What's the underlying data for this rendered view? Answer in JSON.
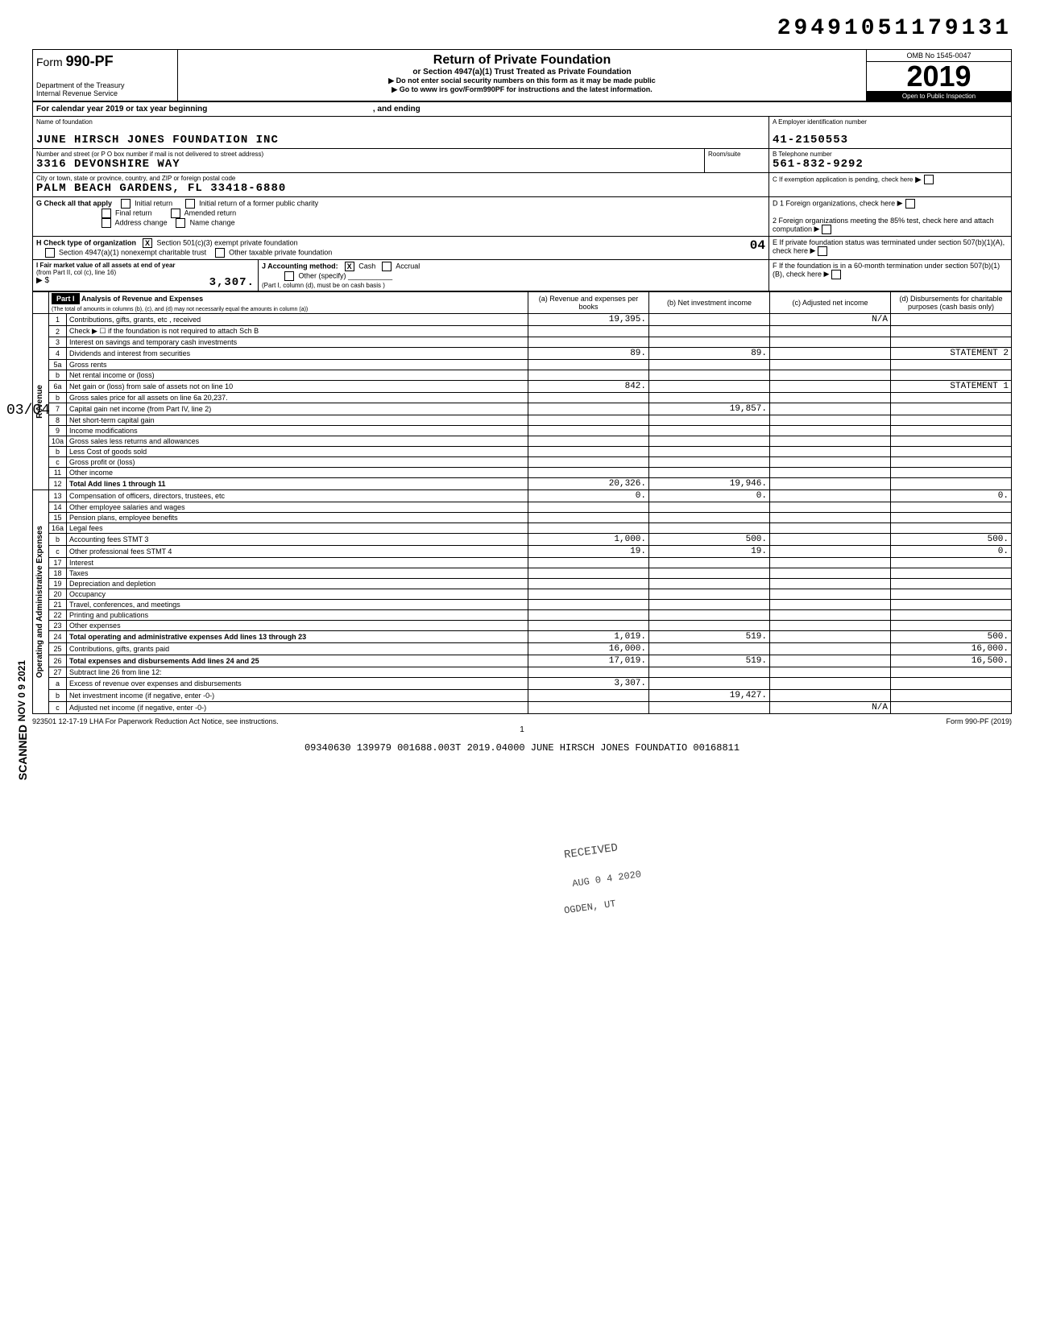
{
  "top_number": "29491051179131",
  "header": {
    "form_label": "Form",
    "form_no": "990-PF",
    "dept": "Department of the Treasury",
    "irs": "Internal Revenue Service",
    "title": "Return of Private Foundation",
    "subtitle": "or Section 4947(a)(1) Trust Treated as Private Foundation",
    "note1": "▶ Do not enter social security numbers on this form as it may be made public",
    "note2": "▶ Go to www irs gov/Form990PF for instructions and the latest information.",
    "omb": "OMB No 1545-0047",
    "year": "2019",
    "open": "Open to Public Inspection"
  },
  "calendar": {
    "text": "For calendar year 2019 or tax year beginning",
    "ending": ", and ending"
  },
  "foundation": {
    "name_label": "Name of foundation",
    "name": "JUNE HIRSCH JONES FOUNDATION INC",
    "addr_label": "Number and street (or P O box number if mail is not delivered to street address)",
    "addr": "3316 DEVONSHIRE WAY",
    "room_label": "Room/suite",
    "city_label": "City or town, state or province, country, and ZIP or foreign postal code",
    "city": "PALM BEACH GARDENS, FL   33418-6880",
    "ein_label": "A Employer identification number",
    "ein": "41-2150553",
    "phone_label": "B Telephone number",
    "phone": "561-832-9292",
    "c_label": "C If exemption application is pending, check here",
    "d1_label": "D 1 Foreign organizations, check here",
    "d2_label": "2 Foreign organizations meeting the 85% test, check here and attach computation",
    "e_label": "E If private foundation status was terminated under section 507(b)(1)(A), check here",
    "f_label": "F If the foundation is in a 60-month termination under section 507(b)(1)(B), check here"
  },
  "g": {
    "label": "G  Check all that apply",
    "initial": "Initial return",
    "initial_former": "Initial return of a former public charity",
    "final": "Final return",
    "amended": "Amended return",
    "addr_change": "Address change",
    "name_change": "Name change"
  },
  "h": {
    "label": "H  Check type of organization",
    "opt1": "Section 501(c)(3) exempt private foundation",
    "opt2": "Section 4947(a)(1) nonexempt charitable trust",
    "opt3": "Other taxable private foundation",
    "hand": "04"
  },
  "i": {
    "label": "I  Fair market value of all assets at end of year",
    "sub": "(from Part II, col (c), line 16)",
    "arrow": "▶ $",
    "value": "3,307."
  },
  "j": {
    "label": "J  Accounting method:",
    "cash": "Cash",
    "accrual": "Accrual",
    "other": "Other (specify)",
    "note": "(Part I, column (d), must be on cash basis )"
  },
  "part1": {
    "label": "Part I",
    "title": "Analysis of Revenue and Expenses",
    "subtitle": "(The total of amounts in columns (b), (c), and (d) may not necessarily equal the amounts in column (a))",
    "col_a": "(a) Revenue and expenses per books",
    "col_b": "(b) Net investment income",
    "col_c": "(c) Adjusted net income",
    "col_d": "(d) Disbursements for charitable purposes (cash basis only)"
  },
  "revenue_label": "Revenue",
  "opadmin_label": "Operating and Administrative Expenses",
  "rows": [
    {
      "n": "1",
      "desc": "Contributions, gifts, grants, etc , received",
      "a": "19,395.",
      "b": "",
      "c": "N/A",
      "d": ""
    },
    {
      "n": "2",
      "desc": "Check ▶ ☐ if the foundation is not required to attach Sch B",
      "a": "",
      "b": "",
      "c": "",
      "d": ""
    },
    {
      "n": "3",
      "desc": "Interest on savings and temporary cash investments",
      "a": "",
      "b": "",
      "c": "",
      "d": ""
    },
    {
      "n": "4",
      "desc": "Dividends and interest from securities",
      "a": "89.",
      "b": "89.",
      "c": "",
      "d": "STATEMENT 2"
    },
    {
      "n": "5a",
      "desc": "Gross rents",
      "a": "",
      "b": "",
      "c": "",
      "d": ""
    },
    {
      "n": "b",
      "desc": "Net rental income or (loss)",
      "a": "",
      "b": "",
      "c": "",
      "d": ""
    },
    {
      "n": "6a",
      "desc": "Net gain or (loss) from sale of assets not on line 10",
      "a": "842.",
      "b": "",
      "c": "",
      "d": "STATEMENT 1"
    },
    {
      "n": "b",
      "desc": "Gross sales price for all assets on line 6a        20,237.",
      "a": "",
      "b": "",
      "c": "",
      "d": ""
    },
    {
      "n": "7",
      "desc": "Capital gain net income (from Part IV, line 2)",
      "a": "",
      "b": "19,857.",
      "c": "",
      "d": ""
    },
    {
      "n": "8",
      "desc": "Net short-term capital gain",
      "a": "",
      "b": "",
      "c": "",
      "d": ""
    },
    {
      "n": "9",
      "desc": "Income modifications",
      "a": "",
      "b": "",
      "c": "",
      "d": ""
    },
    {
      "n": "10a",
      "desc": "Gross sales less returns and allowances",
      "a": "",
      "b": "",
      "c": "",
      "d": ""
    },
    {
      "n": "b",
      "desc": "Less Cost of goods sold",
      "a": "",
      "b": "",
      "c": "",
      "d": ""
    },
    {
      "n": "c",
      "desc": "Gross profit or (loss)",
      "a": "",
      "b": "",
      "c": "",
      "d": ""
    },
    {
      "n": "11",
      "desc": "Other income",
      "a": "",
      "b": "",
      "c": "",
      "d": ""
    },
    {
      "n": "12",
      "desc": "Total  Add lines 1 through 11",
      "a": "20,326.",
      "b": "19,946.",
      "c": "",
      "d": ""
    },
    {
      "n": "13",
      "desc": "Compensation of officers, directors, trustees, etc",
      "a": "0.",
      "b": "0.",
      "c": "",
      "d": "0."
    },
    {
      "n": "14",
      "desc": "Other employee salaries and wages",
      "a": "",
      "b": "",
      "c": "",
      "d": ""
    },
    {
      "n": "15",
      "desc": "Pension plans, employee benefits",
      "a": "",
      "b": "",
      "c": "",
      "d": ""
    },
    {
      "n": "16a",
      "desc": "Legal fees",
      "a": "",
      "b": "",
      "c": "",
      "d": ""
    },
    {
      "n": "b",
      "desc": "Accounting fees                 STMT 3",
      "a": "1,000.",
      "b": "500.",
      "c": "",
      "d": "500."
    },
    {
      "n": "c",
      "desc": "Other professional fees         STMT 4",
      "a": "19.",
      "b": "19.",
      "c": "",
      "d": "0."
    },
    {
      "n": "17",
      "desc": "Interest",
      "a": "",
      "b": "",
      "c": "",
      "d": ""
    },
    {
      "n": "18",
      "desc": "Taxes",
      "a": "",
      "b": "",
      "c": "",
      "d": ""
    },
    {
      "n": "19",
      "desc": "Depreciation and depletion",
      "a": "",
      "b": "",
      "c": "",
      "d": ""
    },
    {
      "n": "20",
      "desc": "Occupancy",
      "a": "",
      "b": "",
      "c": "",
      "d": ""
    },
    {
      "n": "21",
      "desc": "Travel, conferences, and meetings",
      "a": "",
      "b": "",
      "c": "",
      "d": ""
    },
    {
      "n": "22",
      "desc": "Printing and publications",
      "a": "",
      "b": "",
      "c": "",
      "d": ""
    },
    {
      "n": "23",
      "desc": "Other expenses",
      "a": "",
      "b": "",
      "c": "",
      "d": ""
    },
    {
      "n": "24",
      "desc": "Total operating and administrative expenses  Add lines 13 through 23",
      "a": "1,019.",
      "b": "519.",
      "c": "",
      "d": "500."
    },
    {
      "n": "25",
      "desc": "Contributions, gifts, grants paid",
      "a": "16,000.",
      "b": "",
      "c": "",
      "d": "16,000."
    },
    {
      "n": "26",
      "desc": "Total expenses and disbursements Add lines 24 and 25",
      "a": "17,019.",
      "b": "519.",
      "c": "",
      "d": "16,500."
    },
    {
      "n": "27",
      "desc": "Subtract line 26 from line 12:",
      "a": "",
      "b": "",
      "c": "",
      "d": ""
    },
    {
      "n": "a",
      "desc": "Excess of revenue over expenses and disbursements",
      "a": "3,307.",
      "b": "",
      "c": "",
      "d": ""
    },
    {
      "n": "b",
      "desc": "Net investment income (if negative, enter -0-)",
      "a": "",
      "b": "19,427.",
      "c": "",
      "d": ""
    },
    {
      "n": "c",
      "desc": "Adjusted net income (if negative, enter -0-)",
      "a": "",
      "b": "",
      "c": "N/A",
      "d": ""
    }
  ],
  "footer": {
    "lha": "923501 12-17-19  LHA  For Paperwork Reduction Act Notice, see instructions.",
    "form": "Form 990-PF (2019)",
    "page": "1",
    "bottom": "09340630 139979 001688.003T   2019.04000 JUNE HIRSCH JONES FOUNDATIO 00168811"
  },
  "margin": {
    "frac": "03/04",
    "date": "NOV 0 9 2021",
    "scanned": "SCANNED",
    "received": "RECEIVED",
    "aug": "AUG 0 4 2020",
    "ogden": "OGDEN, UT"
  }
}
